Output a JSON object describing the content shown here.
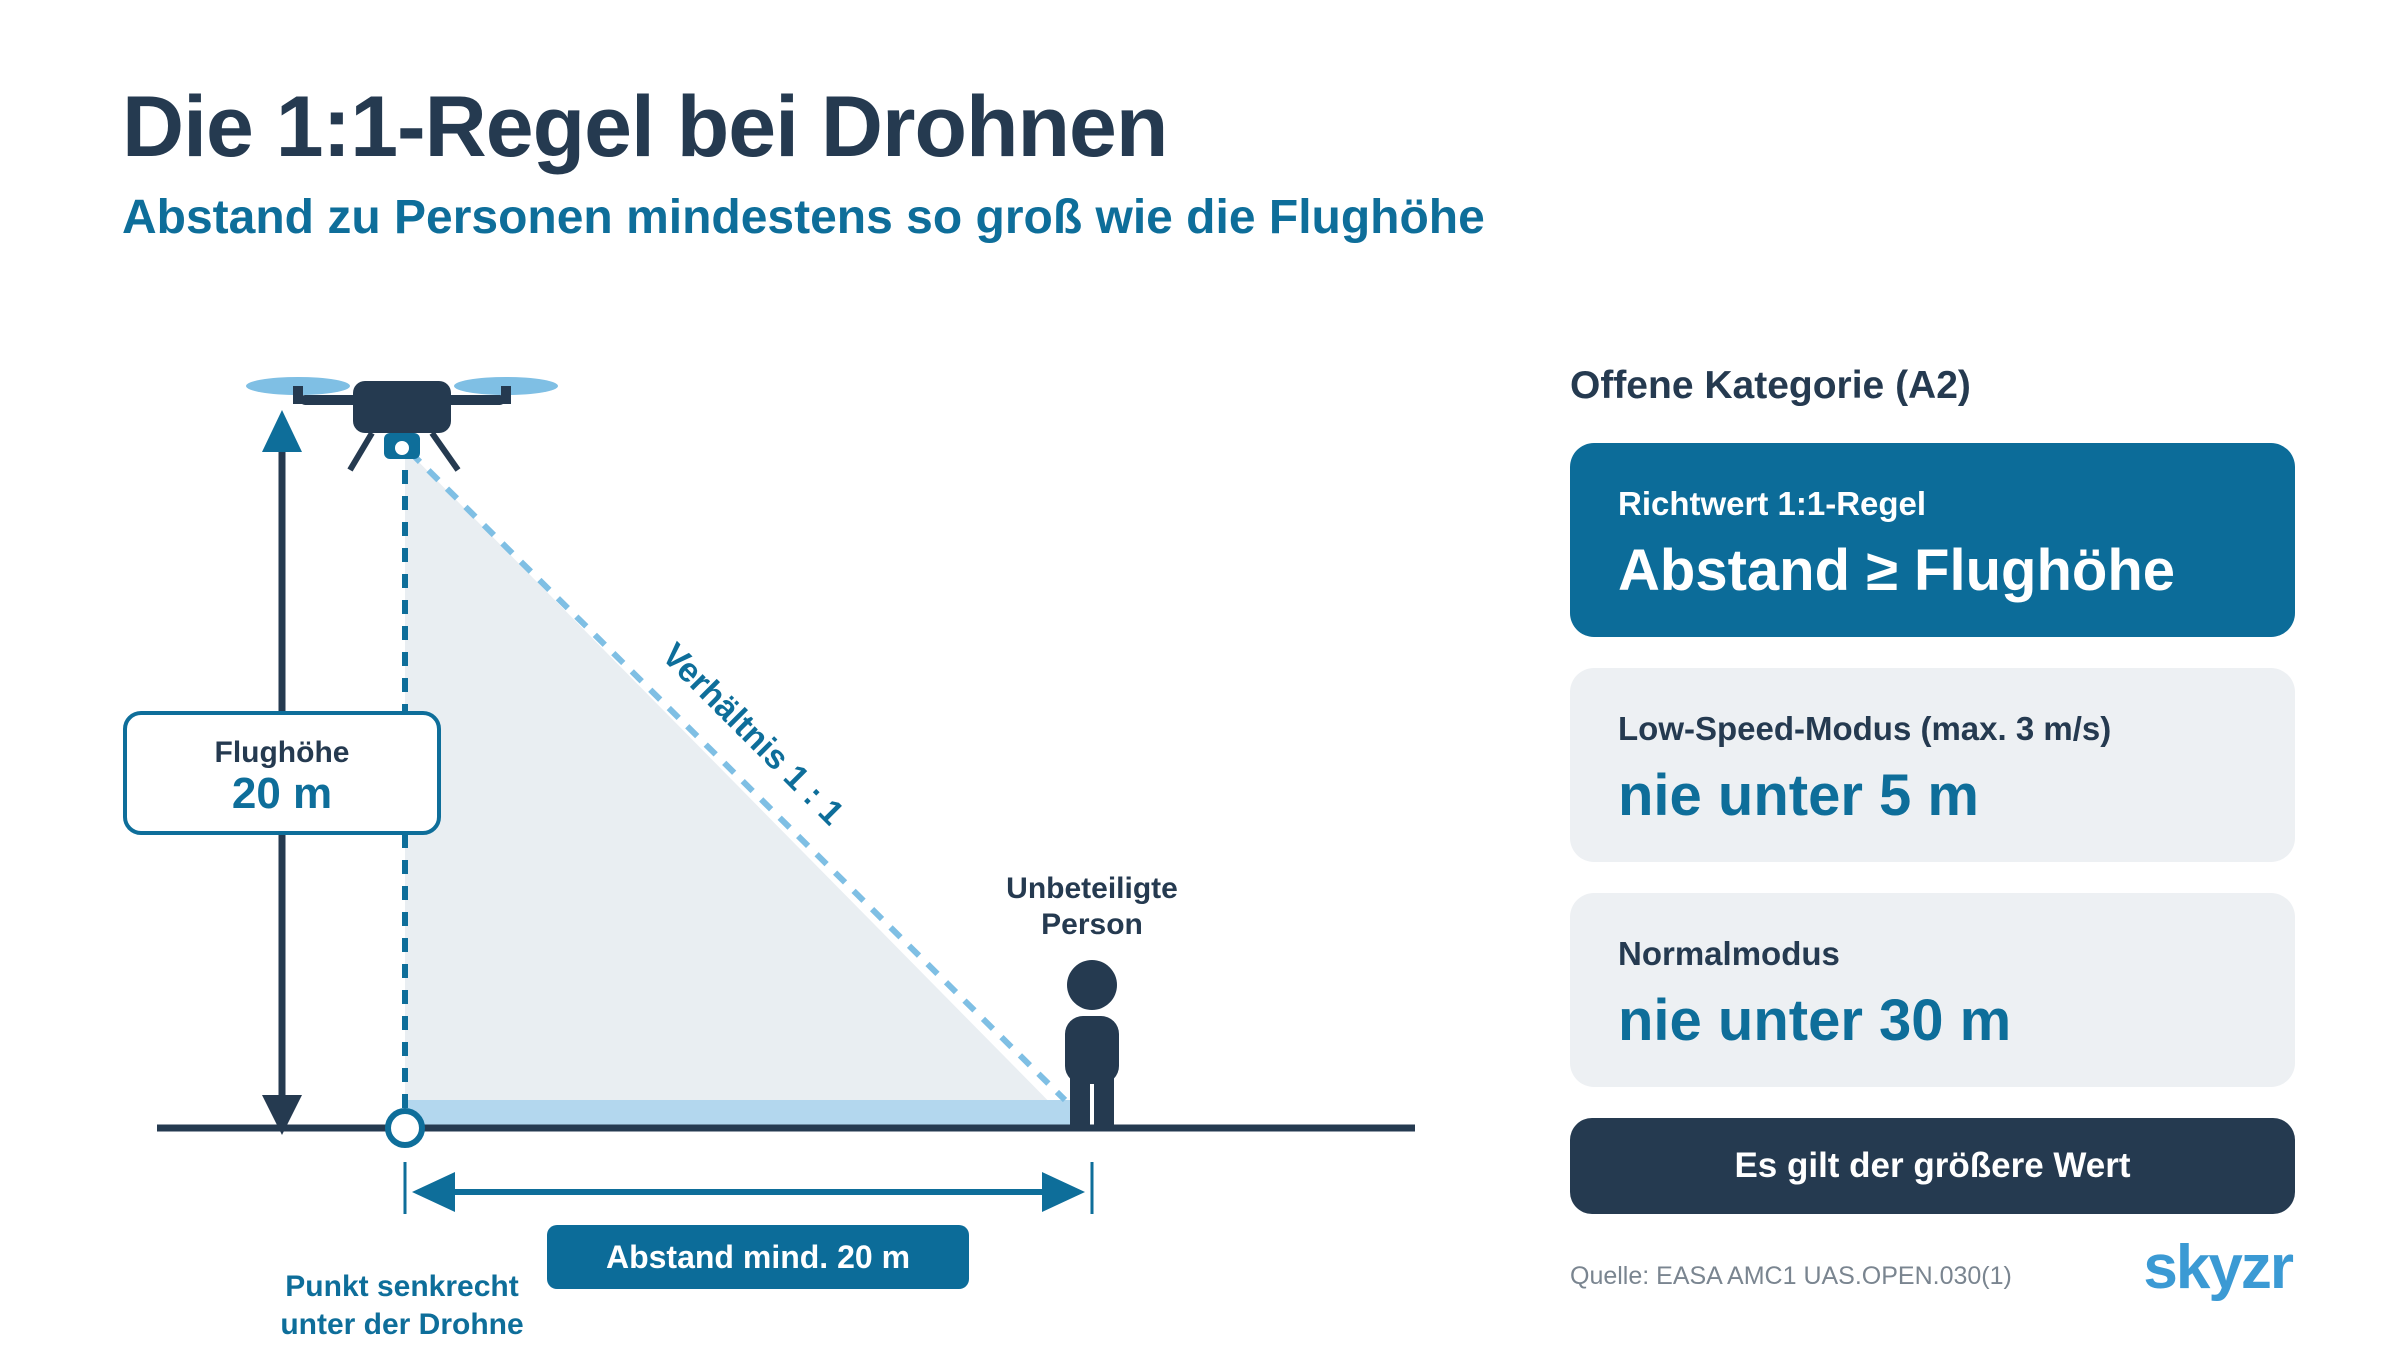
{
  "header": {
    "title": "Die 1:1-Regel bei Drohnen",
    "subtitle": "Abstand zu Personen mindestens so groß wie die Flughöhe"
  },
  "diagram": {
    "height_label": "Flughöhe",
    "height_value": "20 m",
    "ratio_label": "Verhältnis 1 : 1",
    "person_label_line1": "Unbeteiligte",
    "person_label_line2": "Person",
    "distance_label": "Abstand mind. 20 m",
    "point_label_line1": "Punkt senkrecht",
    "point_label_line2": "unter der Drohne"
  },
  "panel": {
    "heading": "Offene Kategorie (A2)",
    "cards": [
      {
        "label": "Richtwert 1:1-Regel",
        "value": "Abstand ≥ Flughöhe"
      },
      {
        "label": "Low-Speed-Modus (max. 3 m/s)",
        "value": "nie unter 5 m"
      },
      {
        "label": "Normalmodus",
        "value": "nie unter 30 m"
      }
    ],
    "footer": "Es gilt der größere Wert"
  },
  "source": "Quelle: EASA AMC1 UAS.OPEN.030(1)",
  "logo": "skyzr",
  "colors": {
    "navy": "#253a50",
    "blue": "#0c6c99",
    "light_blue": "#7fbfe4",
    "card_gray": "#edf0f3",
    "triangle_fill": "#e9eef2"
  }
}
